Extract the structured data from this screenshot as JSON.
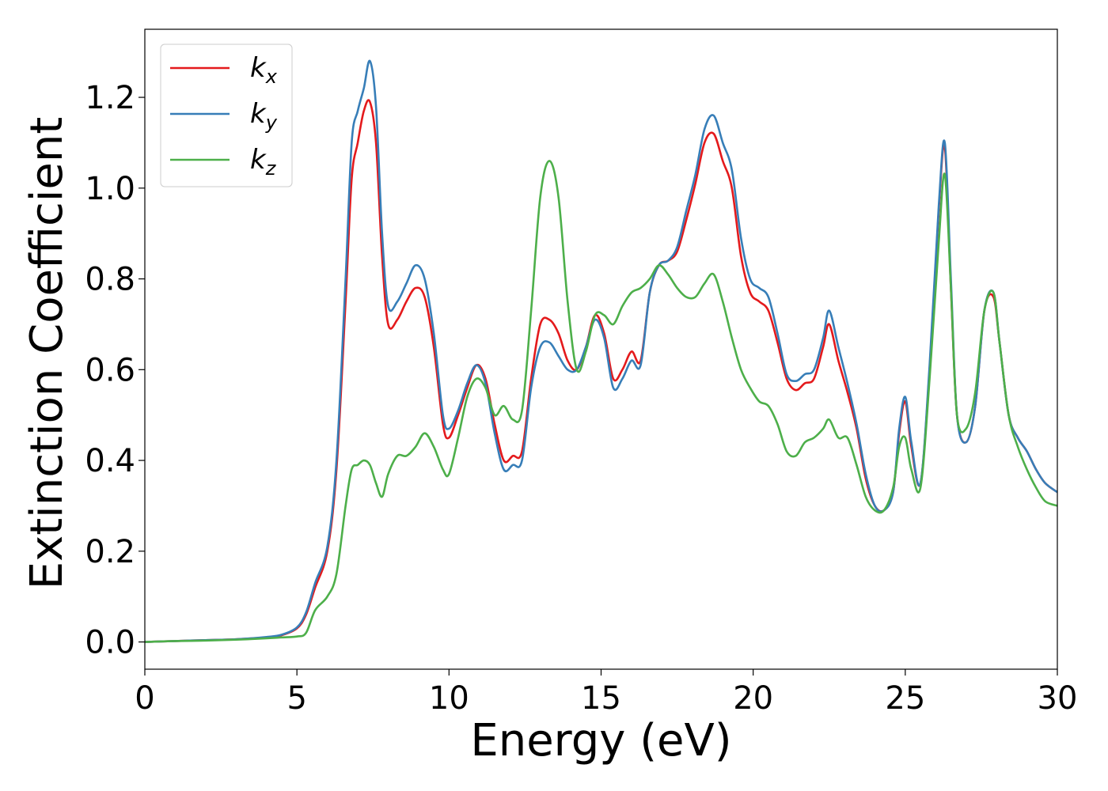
{
  "chart_data": {
    "type": "line",
    "xlabel": "Energy (eV)",
    "ylabel": "Extinction Coefficient",
    "xlim": [
      0,
      30
    ],
    "ylim": [
      -0.06,
      1.35
    ],
    "xticks": [
      "0",
      "5",
      "10",
      "15",
      "20",
      "25",
      "30"
    ],
    "yticks": [
      "0.0",
      "0.2",
      "0.4",
      "0.6",
      "0.8",
      "1.0",
      "1.2"
    ],
    "grid": false,
    "legend_position": "top-left",
    "series": [
      {
        "name": "k",
        "subscript": "x",
        "color": "#e41a1c",
        "x": [
          0,
          1,
          2,
          3,
          4,
          4.5,
          5,
          5.3,
          5.6,
          6.0,
          6.3,
          6.6,
          6.8,
          7.0,
          7.2,
          7.4,
          7.6,
          7.8,
          8.0,
          8.3,
          8.6,
          8.9,
          9.2,
          9.5,
          9.8,
          10.0,
          10.3,
          10.6,
          10.9,
          11.2,
          11.5,
          11.8,
          12.1,
          12.4,
          12.7,
          13.0,
          13.3,
          13.6,
          13.9,
          14.2,
          14.5,
          14.8,
          15.1,
          15.4,
          15.7,
          16.0,
          16.3,
          16.6,
          16.9,
          17.2,
          17.5,
          17.8,
          18.1,
          18.4,
          18.7,
          19.0,
          19.3,
          19.6,
          19.9,
          20.2,
          20.5,
          20.8,
          21.1,
          21.4,
          21.7,
          22.0,
          22.3,
          22.5,
          22.8,
          23.1,
          23.4,
          23.7,
          24.0,
          24.3,
          24.6,
          24.8,
          25.0,
          25.2,
          25.5,
          25.8,
          26.1,
          26.3,
          26.5,
          26.7,
          27.0,
          27.3,
          27.6,
          27.9,
          28.1,
          28.4,
          28.7,
          29.0,
          29.3,
          29.6,
          30.0
        ],
        "y": [
          0.0,
          0.002,
          0.004,
          0.006,
          0.01,
          0.015,
          0.03,
          0.06,
          0.12,
          0.2,
          0.38,
          0.75,
          1.02,
          1.1,
          1.17,
          1.19,
          1.1,
          0.85,
          0.7,
          0.71,
          0.75,
          0.78,
          0.76,
          0.65,
          0.48,
          0.45,
          0.5,
          0.56,
          0.61,
          0.58,
          0.48,
          0.4,
          0.41,
          0.42,
          0.58,
          0.7,
          0.71,
          0.68,
          0.62,
          0.6,
          0.65,
          0.72,
          0.68,
          0.58,
          0.6,
          0.64,
          0.62,
          0.77,
          0.83,
          0.84,
          0.86,
          0.93,
          1.01,
          1.1,
          1.12,
          1.06,
          1.0,
          0.85,
          0.77,
          0.75,
          0.73,
          0.66,
          0.58,
          0.555,
          0.57,
          0.58,
          0.65,
          0.7,
          0.62,
          0.55,
          0.47,
          0.36,
          0.3,
          0.29,
          0.33,
          0.46,
          0.53,
          0.43,
          0.35,
          0.6,
          0.95,
          1.09,
          0.78,
          0.5,
          0.44,
          0.52,
          0.73,
          0.76,
          0.66,
          0.5,
          0.45,
          0.42,
          0.38,
          0.35,
          0.33
        ]
      },
      {
        "name": "k",
        "subscript": "y",
        "color": "#377eb8",
        "x": [
          0,
          1,
          2,
          3,
          4,
          4.5,
          5,
          5.3,
          5.6,
          6.0,
          6.3,
          6.6,
          6.8,
          7.0,
          7.2,
          7.4,
          7.6,
          7.8,
          8.0,
          8.3,
          8.6,
          8.9,
          9.2,
          9.5,
          9.8,
          10.0,
          10.3,
          10.6,
          10.9,
          11.2,
          11.5,
          11.8,
          12.1,
          12.4,
          12.7,
          13.0,
          13.3,
          13.6,
          13.9,
          14.2,
          14.5,
          14.8,
          15.1,
          15.4,
          15.7,
          16.0,
          16.3,
          16.6,
          16.9,
          17.2,
          17.5,
          17.8,
          18.1,
          18.4,
          18.7,
          19.0,
          19.3,
          19.6,
          19.9,
          20.2,
          20.5,
          20.8,
          21.1,
          21.4,
          21.7,
          22.0,
          22.3,
          22.5,
          22.8,
          23.1,
          23.4,
          23.7,
          24.0,
          24.3,
          24.6,
          24.8,
          25.0,
          25.2,
          25.5,
          25.8,
          26.1,
          26.3,
          26.5,
          26.7,
          27.0,
          27.3,
          27.6,
          27.9,
          28.1,
          28.4,
          28.7,
          29.0,
          29.3,
          29.6,
          30.0
        ],
        "y": [
          0.0,
          0.002,
          0.004,
          0.006,
          0.011,
          0.016,
          0.032,
          0.065,
          0.13,
          0.21,
          0.4,
          0.8,
          1.1,
          1.17,
          1.22,
          1.28,
          1.18,
          0.9,
          0.74,
          0.75,
          0.79,
          0.83,
          0.8,
          0.68,
          0.5,
          0.47,
          0.51,
          0.57,
          0.61,
          0.57,
          0.46,
          0.38,
          0.39,
          0.4,
          0.56,
          0.65,
          0.66,
          0.63,
          0.6,
          0.6,
          0.65,
          0.71,
          0.67,
          0.56,
          0.58,
          0.62,
          0.61,
          0.77,
          0.83,
          0.84,
          0.87,
          0.95,
          1.03,
          1.13,
          1.16,
          1.1,
          1.04,
          0.89,
          0.8,
          0.78,
          0.76,
          0.68,
          0.59,
          0.575,
          0.59,
          0.6,
          0.67,
          0.73,
          0.65,
          0.57,
          0.48,
          0.37,
          0.3,
          0.29,
          0.33,
          0.47,
          0.54,
          0.44,
          0.35,
          0.61,
          0.96,
          1.1,
          0.8,
          0.5,
          0.44,
          0.52,
          0.73,
          0.77,
          0.66,
          0.5,
          0.45,
          0.42,
          0.38,
          0.35,
          0.33
        ]
      },
      {
        "name": "k",
        "subscript": "z",
        "color": "#4daf4a",
        "x": [
          0,
          1,
          2,
          3,
          4,
          4.5,
          5,
          5.3,
          5.6,
          6.0,
          6.3,
          6.6,
          6.8,
          7.0,
          7.2,
          7.4,
          7.6,
          7.8,
          8.0,
          8.3,
          8.6,
          8.9,
          9.2,
          9.5,
          9.8,
          10.0,
          10.3,
          10.6,
          10.9,
          11.2,
          11.5,
          11.8,
          12.1,
          12.4,
          12.7,
          13.0,
          13.3,
          13.6,
          13.9,
          14.2,
          14.5,
          14.8,
          15.1,
          15.4,
          15.7,
          16.0,
          16.3,
          16.6,
          16.9,
          17.2,
          17.5,
          17.8,
          18.1,
          18.4,
          18.7,
          19.0,
          19.3,
          19.6,
          19.9,
          20.2,
          20.5,
          20.8,
          21.1,
          21.4,
          21.7,
          22.0,
          22.3,
          22.5,
          22.8,
          23.1,
          23.4,
          23.7,
          24.0,
          24.3,
          24.6,
          24.8,
          25.0,
          25.2,
          25.5,
          25.8,
          26.1,
          26.3,
          26.5,
          26.7,
          27.0,
          27.3,
          27.6,
          27.9,
          28.1,
          28.4,
          28.7,
          29.0,
          29.3,
          29.6,
          30.0
        ],
        "y": [
          0.0,
          0.002,
          0.003,
          0.005,
          0.008,
          0.01,
          0.012,
          0.02,
          0.07,
          0.1,
          0.15,
          0.3,
          0.38,
          0.39,
          0.4,
          0.39,
          0.35,
          0.32,
          0.37,
          0.41,
          0.41,
          0.43,
          0.46,
          0.43,
          0.38,
          0.37,
          0.45,
          0.54,
          0.58,
          0.56,
          0.5,
          0.52,
          0.49,
          0.51,
          0.73,
          0.98,
          1.06,
          0.98,
          0.75,
          0.6,
          0.64,
          0.72,
          0.72,
          0.7,
          0.74,
          0.77,
          0.78,
          0.8,
          0.83,
          0.81,
          0.78,
          0.76,
          0.76,
          0.79,
          0.81,
          0.75,
          0.67,
          0.6,
          0.56,
          0.53,
          0.52,
          0.48,
          0.42,
          0.41,
          0.44,
          0.45,
          0.47,
          0.49,
          0.45,
          0.45,
          0.39,
          0.32,
          0.29,
          0.29,
          0.34,
          0.43,
          0.45,
          0.38,
          0.34,
          0.58,
          0.88,
          1.03,
          0.78,
          0.5,
          0.47,
          0.55,
          0.73,
          0.77,
          0.66,
          0.5,
          0.43,
          0.38,
          0.34,
          0.31,
          0.3
        ]
      }
    ]
  }
}
